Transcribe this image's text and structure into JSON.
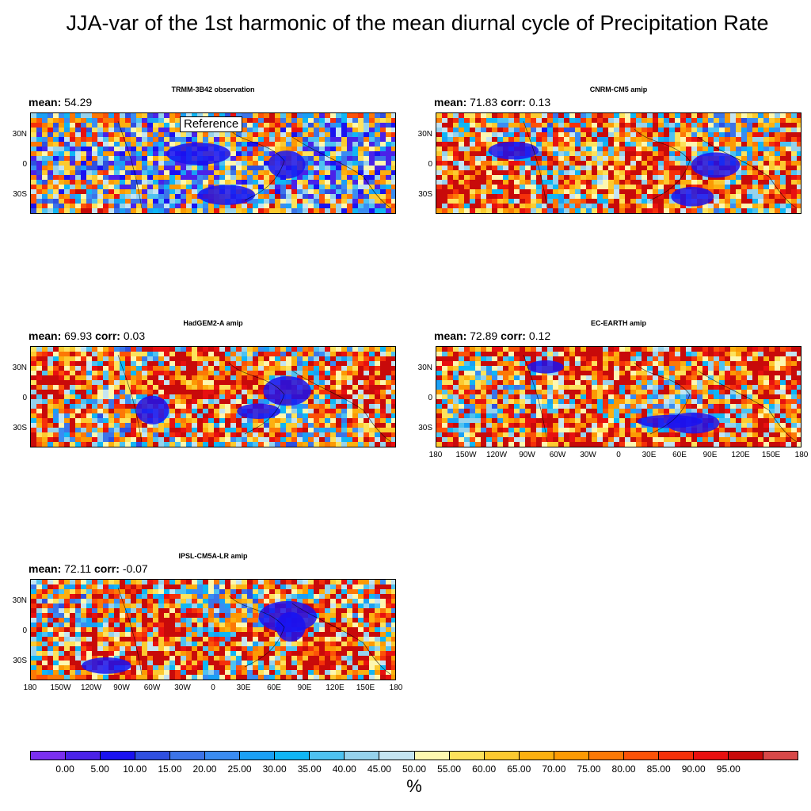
{
  "title": "JJA-var of the 1st harmonic of the mean diurnal cycle of Precipitation Rate",
  "units": "%",
  "lat_labels": [
    "30N",
    "0",
    "30S"
  ],
  "lon_labels": [
    "180",
    "150W",
    "120W",
    "90W",
    "60W",
    "30W",
    "0",
    "30E",
    "60E",
    "90E",
    "120E",
    "150E",
    "180"
  ],
  "stat_labels": {
    "mean": "mean:",
    "corr": "corr:"
  },
  "reference_label": "Reference",
  "panels": [
    {
      "title": "TRMM-3B42 observation",
      "mean": "54.29",
      "corr": "",
      "palette_bias": 0.42,
      "show_lon": false,
      "reference": true
    },
    {
      "title": "CNRM-CM5 amip",
      "mean": "71.83",
      "corr": "0.13",
      "palette_bias": 0.7,
      "show_lon": false,
      "reference": false
    },
    {
      "title": "HadGEM2-A amip",
      "mean": "69.93",
      "corr": "0.03",
      "palette_bias": 0.68,
      "show_lon": false,
      "reference": false
    },
    {
      "title": "EC-EARTH amip",
      "mean": "72.89",
      "corr": "0.12",
      "palette_bias": 0.72,
      "show_lon": true,
      "reference": false
    },
    {
      "title": "IPSL-CM5A-LR amip",
      "mean": "72.11",
      "corr": "-0.07",
      "palette_bias": 0.7,
      "show_lon": true,
      "reference": false
    }
  ],
  "colorbar": {
    "colors": [
      "#7b2ff0",
      "#4a22e8",
      "#1a12f0",
      "#2f4fe0",
      "#3c74e8",
      "#3a8cf2",
      "#1aa0f5",
      "#10b6f5",
      "#4ec2f0",
      "#96d2ec",
      "#c4e4f2",
      "#fdf7b0",
      "#fde25c",
      "#fcca30",
      "#fcb010",
      "#fc9a04",
      "#fc7806",
      "#fc5208",
      "#f5300a",
      "#e81010",
      "#c80a0a",
      "#d84848"
    ],
    "labels": [
      "0.00",
      "5.00",
      "10.00",
      "15.00",
      "20.00",
      "25.00",
      "30.00",
      "35.00",
      "40.00",
      "45.00",
      "50.00",
      "55.00",
      "60.00",
      "65.00",
      "70.00",
      "75.00",
      "80.00",
      "85.00",
      "90.00",
      "95.00"
    ]
  }
}
